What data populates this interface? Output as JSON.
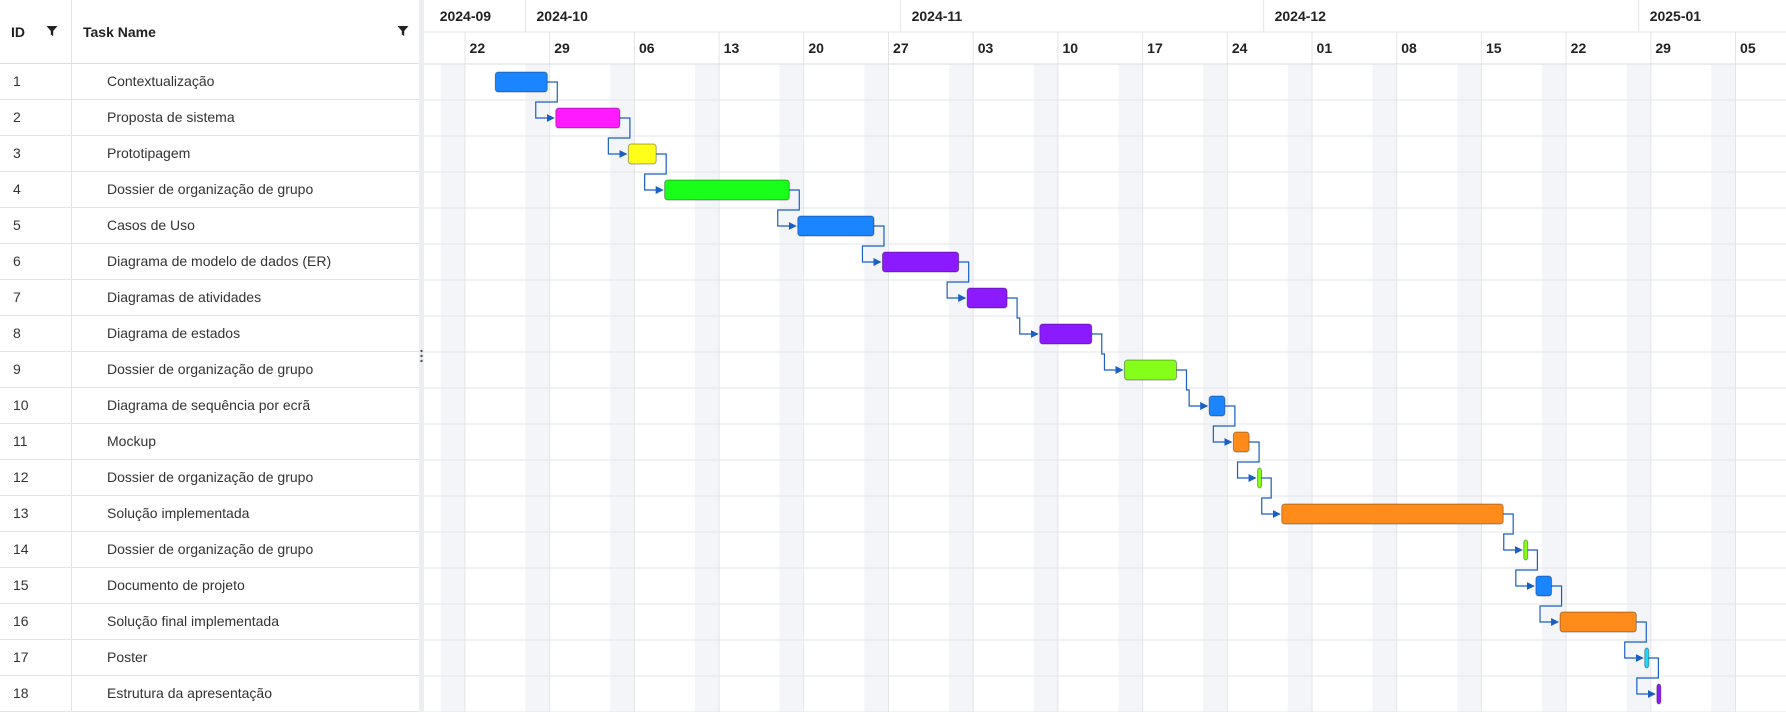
{
  "grid": {
    "columns": {
      "id": "ID",
      "name": "Task Name"
    },
    "rows": [
      {
        "id": "1",
        "name": "Contextualização"
      },
      {
        "id": "2",
        "name": "Proposta de sistema"
      },
      {
        "id": "3",
        "name": "Prototipagem"
      },
      {
        "id": "4",
        "name": "Dossier de organização de grupo"
      },
      {
        "id": "5",
        "name": "Casos de Uso"
      },
      {
        "id": "6",
        "name": "Diagrama de modelo de dados (ER)"
      },
      {
        "id": "7",
        "name": "Diagramas de atividades"
      },
      {
        "id": "8",
        "name": "Diagrama de estados"
      },
      {
        "id": "9",
        "name": "Dossier de organização de grupo"
      },
      {
        "id": "10",
        "name": "Diagrama de sequência por ecrã"
      },
      {
        "id": "11",
        "name": "Mockup"
      },
      {
        "id": "12",
        "name": "Dossier de organização de grupo"
      },
      {
        "id": "13",
        "name": "Solução implementada"
      },
      {
        "id": "14",
        "name": "Dossier de organização de grupo"
      },
      {
        "id": "15",
        "name": "Documento de projeto"
      },
      {
        "id": "16",
        "name": "Solução final implementada"
      },
      {
        "id": "17",
        "name": "Poster"
      },
      {
        "id": "18",
        "name": "Estrutura da apresentação"
      }
    ]
  },
  "timeline": {
    "months": [
      {
        "label": "2024-09",
        "start_day": -3
      },
      {
        "label": "2024-10",
        "start_day": 5
      },
      {
        "label": "2024-11",
        "start_day": 36
      },
      {
        "label": "2024-12",
        "start_day": 66
      },
      {
        "label": "2025-01",
        "start_day": 97
      }
    ],
    "weeks": [
      "22",
      "29",
      "06",
      "13",
      "20",
      "27",
      "03",
      "10",
      "17",
      "24",
      "01",
      "08",
      "15",
      "22",
      "29",
      "05"
    ],
    "dependency_color": "#1a5fc4"
  },
  "tasks": [
    {
      "start_day": 2.5,
      "duration_days": 4.3,
      "color": "#1a85ff"
    },
    {
      "start_day": 7.5,
      "duration_days": 5.3,
      "color": "#ff1aff"
    },
    {
      "start_day": 13.5,
      "duration_days": 2.3,
      "color": "#ffff1a"
    },
    {
      "start_day": 16.5,
      "duration_days": 10.3,
      "color": "#1aff1a"
    },
    {
      "start_day": 27.5,
      "duration_days": 6.3,
      "color": "#1a85ff"
    },
    {
      "start_day": 34.5,
      "duration_days": 6.3,
      "color": "#8c1aff"
    },
    {
      "start_day": 41.5,
      "duration_days": 3.3,
      "color": "#8c1aff"
    },
    {
      "start_day": 47.5,
      "duration_days": 4.3,
      "color": "#8c1aff"
    },
    {
      "start_day": 54.5,
      "duration_days": 4.3,
      "color": "#85ff1a"
    },
    {
      "start_day": 61.5,
      "duration_days": 1.3,
      "color": "#1a85ff"
    },
    {
      "start_day": 63.5,
      "duration_days": 1.3,
      "color": "#ff8c1a"
    },
    {
      "start_day": 65.5,
      "duration_days": 0.3,
      "color": "#85ff1a"
    },
    {
      "start_day": 67.5,
      "duration_days": 18.3,
      "color": "#ff8c1a"
    },
    {
      "start_day": 87.5,
      "duration_days": 0.3,
      "color": "#85ff1a"
    },
    {
      "start_day": 88.5,
      "duration_days": 1.3,
      "color": "#1a85ff"
    },
    {
      "start_day": 90.5,
      "duration_days": 6.3,
      "color": "#ff8c1a"
    },
    {
      "start_day": 97.5,
      "duration_days": 0.3,
      "color": "#1ad9ff"
    },
    {
      "start_day": 98.5,
      "duration_days": 0.3,
      "color": "#8c1aff"
    }
  ]
}
